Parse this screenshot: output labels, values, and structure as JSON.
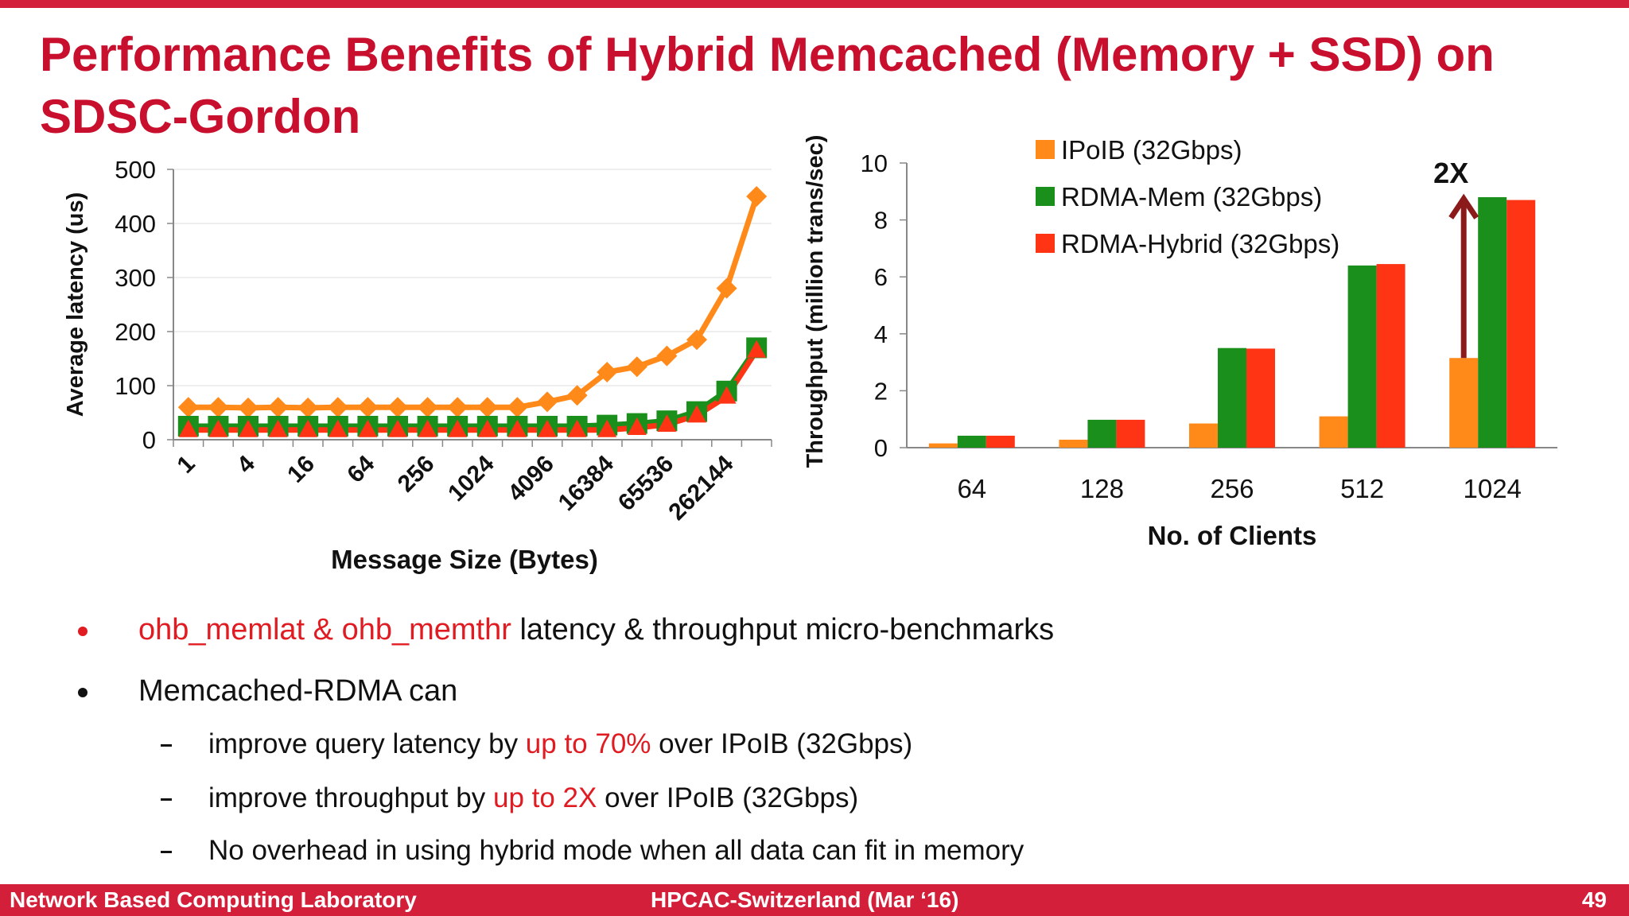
{
  "slide": {
    "title": "Performance Benefits of Hybrid Memcached (Memory + SSD) on SDSC-Gordon"
  },
  "bullets": [
    {
      "highlight": "ohb_memlat & ohb_memthr",
      "text": " latency & throughput micro-benchmarks"
    },
    {
      "text": "Memcached-RDMA can"
    }
  ],
  "sub_bullets": [
    {
      "before": "improve query latency by ",
      "highlight": "up to 70%",
      "after": " over IPoIB (32Gbps)"
    },
    {
      "before": "improve throughput by ",
      "highlight": "up to 2X",
      "after": " over IPoIB (32Gbps)"
    },
    {
      "before": "No overhead in using hybrid mode when all data can fit in memory",
      "highlight": "",
      "after": ""
    }
  ],
  "footer": {
    "left": "Network Based Computing Laboratory",
    "center": "HPCAC-Switzerland (Mar ‘16)",
    "page": "49"
  },
  "colors": {
    "accent": "#c8102e",
    "footer_bg": "#d41f3a",
    "ipoib": "#ff8a1a",
    "rdma_mem": "#1b8f1b",
    "rdma_hybrid": "#ff3414",
    "arrow": "#8b1a1a"
  },
  "chart_data": [
    {
      "type": "line",
      "title": "",
      "xlabel": "Message Size (Bytes)",
      "ylabel": "Average latency (us)",
      "ylim": [
        0,
        500
      ],
      "yticks": [
        0,
        100,
        200,
        300,
        400,
        500
      ],
      "x": [
        1,
        2,
        4,
        8,
        16,
        32,
        64,
        128,
        256,
        512,
        1024,
        2048,
        4096,
        8192,
        16384,
        32768,
        65536,
        131072,
        262144,
        524288
      ],
      "x_tick_labels": [
        "1",
        "4",
        "16",
        "64",
        "256",
        "1024",
        "4096",
        "16384",
        "65536",
        "262144"
      ],
      "grid": "horizontal",
      "legend": "none",
      "series": [
        {
          "name": "IPoIB (32Gbps)",
          "marker": "diamond",
          "values": [
            60,
            60,
            59,
            60,
            59,
            60,
            60,
            60,
            60,
            60,
            60,
            60,
            70,
            82,
            125,
            135,
            155,
            185,
            280,
            450
          ]
        },
        {
          "name": "RDMA-Mem (32Gbps)",
          "marker": "square",
          "values": [
            25,
            25,
            25,
            25,
            25,
            25,
            25,
            25,
            25,
            25,
            25,
            25,
            25,
            25,
            27,
            30,
            35,
            52,
            90,
            170
          ]
        },
        {
          "name": "RDMA-Hybrid (32Gbps)",
          "marker": "triangle",
          "values": [
            18,
            18,
            18,
            18,
            18,
            18,
            18,
            18,
            18,
            18,
            18,
            18,
            18,
            18,
            18,
            22,
            28,
            45,
            80,
            165
          ]
        }
      ]
    },
    {
      "type": "bar",
      "title": "",
      "xlabel": "No. of Clients",
      "ylabel": "Throughput (million trans/sec)",
      "ylim": [
        0,
        10
      ],
      "yticks": [
        0,
        2,
        4,
        6,
        8,
        10
      ],
      "categories": [
        "64",
        "128",
        "256",
        "512",
        "1024"
      ],
      "grid": "none",
      "legend": "top-right",
      "series": [
        {
          "name": "IPoIB (32Gbps)",
          "values": [
            0.15,
            0.28,
            0.85,
            1.1,
            3.15
          ]
        },
        {
          "name": "RDMA-Mem (32Gbps)",
          "values": [
            0.42,
            0.98,
            3.5,
            6.4,
            8.8
          ]
        },
        {
          "name": "RDMA-Hybrid (32Gbps)",
          "values": [
            0.42,
            0.98,
            3.48,
            6.45,
            8.7
          ]
        }
      ],
      "annotation": {
        "text": "2X",
        "category": "1024",
        "from": 3.15,
        "to": 8.8
      }
    }
  ]
}
